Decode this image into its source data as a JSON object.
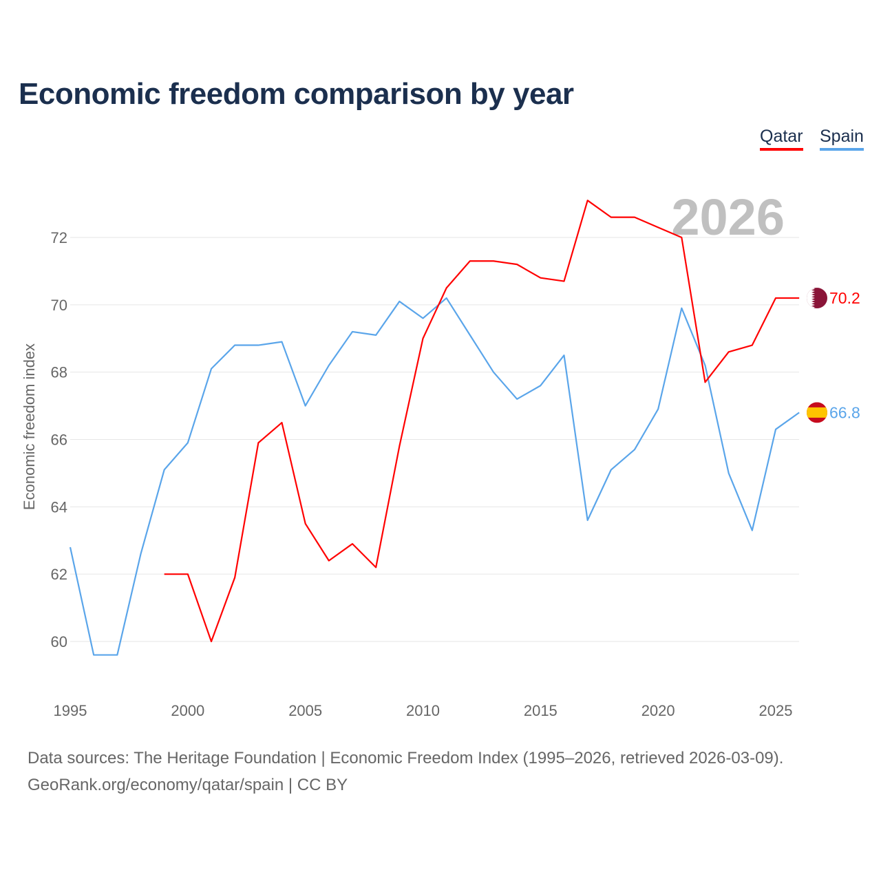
{
  "title": "Economic freedom comparison by year",
  "footer": {
    "line1": "Data sources: The Heritage Foundation | Economic Freedom Index (1995–2026, retrieved 2026-03-09).",
    "line2": "GeoRank.org/economy/qatar/spain | CC BY"
  },
  "chart_data": {
    "type": "line",
    "title": "Economic freedom comparison by year",
    "xlabel": "",
    "ylabel": "Economic freedom index",
    "xlim": [
      1995,
      2026
    ],
    "ylim": [
      58.5,
      73.5
    ],
    "xticks": [
      1995,
      2000,
      2005,
      2010,
      2015,
      2020,
      2025
    ],
    "yticks": [
      60,
      62,
      64,
      66,
      68,
      70,
      72
    ],
    "grid": true,
    "legend_placement": "top-right",
    "watermark_year": "2026",
    "series": [
      {
        "name": "Qatar",
        "color": "#ff0000",
        "end_label": "70.2",
        "x": [
          1999,
          2000,
          2001,
          2002,
          2003,
          2004,
          2005,
          2006,
          2007,
          2008,
          2009,
          2010,
          2011,
          2012,
          2013,
          2014,
          2015,
          2016,
          2017,
          2018,
          2019,
          2020,
          2021,
          2022,
          2023,
          2024,
          2025,
          2026
        ],
        "values": [
          62.0,
          62.0,
          60.0,
          61.9,
          65.9,
          66.5,
          63.5,
          62.4,
          62.9,
          62.2,
          65.8,
          69.0,
          70.5,
          71.3,
          71.3,
          71.2,
          70.8,
          70.7,
          73.1,
          72.6,
          72.6,
          72.3,
          72.0,
          67.7,
          68.6,
          68.8,
          70.2,
          70.2
        ]
      },
      {
        "name": "Spain",
        "color": "#5aa5ea",
        "end_label": "66.8",
        "x": [
          1995,
          1996,
          1997,
          1998,
          1999,
          2000,
          2001,
          2002,
          2003,
          2004,
          2005,
          2006,
          2007,
          2008,
          2009,
          2010,
          2011,
          2012,
          2013,
          2014,
          2015,
          2016,
          2017,
          2018,
          2019,
          2020,
          2021,
          2022,
          2023,
          2024,
          2025,
          2026
        ],
        "values": [
          62.8,
          59.6,
          59.6,
          62.6,
          65.1,
          65.9,
          68.1,
          68.8,
          68.8,
          68.9,
          67.0,
          68.2,
          69.2,
          69.1,
          70.1,
          69.6,
          70.2,
          69.1,
          68.0,
          67.2,
          67.6,
          68.5,
          63.6,
          65.1,
          65.7,
          66.9,
          69.9,
          68.2,
          65.0,
          63.3,
          66.3,
          66.8
        ]
      }
    ]
  }
}
